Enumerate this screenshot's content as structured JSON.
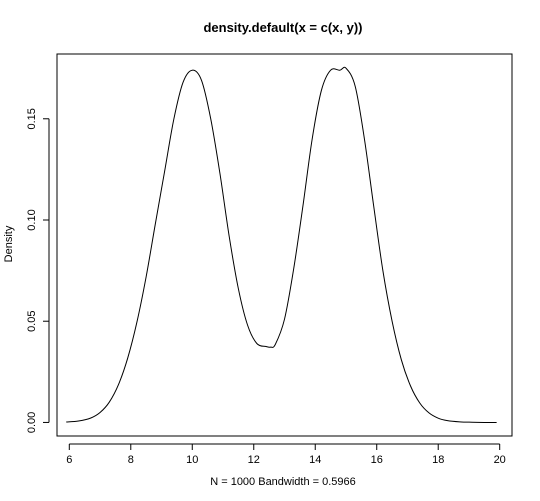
{
  "chart_data": {
    "type": "line",
    "title": "density.default(x = c(x, y))",
    "xlabel": "N = 1000   Bandwidth = 0.5966",
    "ylabel": "Density",
    "xlim": [
      5.6,
      20.4
    ],
    "ylim": [
      -0.0067,
      0.182
    ],
    "x_ticks": [
      6,
      8,
      10,
      12,
      14,
      16,
      18,
      20
    ],
    "y_ticks": [
      0.0,
      0.05,
      0.1,
      0.15
    ],
    "y_tick_labels": [
      "0.00",
      "0.05",
      "0.10",
      "0.15"
    ],
    "grid": false,
    "line_color": "#000000",
    "series": [
      {
        "x": [
          5.9,
          6.3,
          6.7,
          7.0,
          7.3,
          7.6,
          7.9,
          8.2,
          8.5,
          8.8,
          9.1,
          9.4,
          9.7,
          10.0,
          10.3,
          10.6,
          10.9,
          11.2,
          11.5,
          11.8,
          12.1,
          12.4,
          12.55,
          12.7,
          13.0,
          13.3,
          13.6,
          13.9,
          14.2,
          14.5,
          14.8,
          15.0,
          15.3,
          15.6,
          15.9,
          16.2,
          16.5,
          16.8,
          17.1,
          17.4,
          17.7,
          18.0,
          18.3,
          18.7,
          19.1,
          19.5,
          19.9
        ],
        "y": [
          0.0002,
          0.0007,
          0.0022,
          0.0049,
          0.01,
          0.0187,
          0.0318,
          0.0496,
          0.072,
          0.0982,
          0.124,
          0.1498,
          0.168,
          0.174,
          0.169,
          0.15,
          0.123,
          0.092,
          0.066,
          0.048,
          0.039,
          0.0375,
          0.0372,
          0.0385,
          0.051,
          0.076,
          0.107,
          0.14,
          0.164,
          0.174,
          0.174,
          0.175,
          0.166,
          0.14,
          0.107,
          0.075,
          0.05,
          0.031,
          0.018,
          0.0096,
          0.0047,
          0.0021,
          0.0009,
          0.0003,
          0.0001,
          0.0,
          0.0
        ]
      }
    ]
  }
}
